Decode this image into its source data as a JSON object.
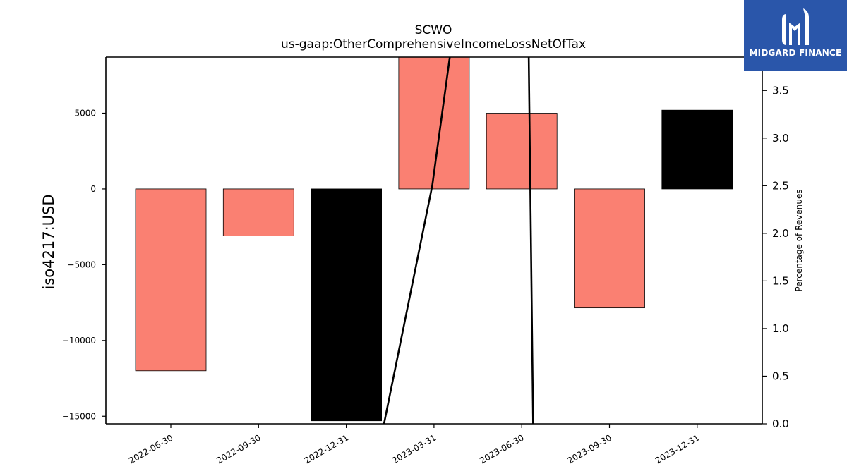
{
  "chart_data": {
    "type": "bar",
    "title": "SCWO",
    "subtitle": "us-gaap:OtherComprehensiveIncomeLossNetOfTax",
    "ylabel": "iso4217:USD",
    "y2label": "Percentage of Revenues",
    "categories": [
      "2022-06-30",
      "2022-09-30",
      "2022-12-31",
      "2023-03-31",
      "2023-06-30",
      "2023-09-30",
      "2023-12-31"
    ],
    "values": [
      -12000,
      -3100,
      -15300,
      8700,
      5000,
      -7850,
      5200
    ],
    "bar_colors": [
      "#fa8072",
      "#fa8072",
      "#000000",
      "#fa8072",
      "#fa8072",
      "#fa8072",
      "#000000"
    ],
    "ylim": [
      -15500,
      8700
    ],
    "yticks": [
      5000,
      0,
      -5000,
      -10000,
      -15000
    ],
    "ytick_labels": [
      "5000",
      "0",
      "−5000",
      "−10000",
      "−15000"
    ],
    "y2lim": [
      0.0,
      3.85
    ],
    "y2ticks": [
      0.0,
      0.5,
      1.0,
      1.5,
      2.0,
      2.5,
      3.0,
      3.5
    ],
    "y2tick_labels": [
      "0.0",
      "0.5",
      "1.0",
      "1.5",
      "2.0",
      "2.5",
      "3.0",
      "3.5"
    ],
    "secondary_lines": [
      {
        "color": "#000000",
        "points": [
          [
            2.43,
            0.0
          ],
          [
            2.98,
            2.5
          ],
          [
            3.18,
            3.85
          ]
        ]
      },
      {
        "color": "#000000",
        "points": [
          [
            4.08,
            3.85
          ],
          [
            4.13,
            0.0
          ]
        ]
      }
    ],
    "grid": false,
    "legend": "none"
  },
  "logo": {
    "text": "MIDGARD FINANCE",
    "color": "#2a56aa"
  }
}
